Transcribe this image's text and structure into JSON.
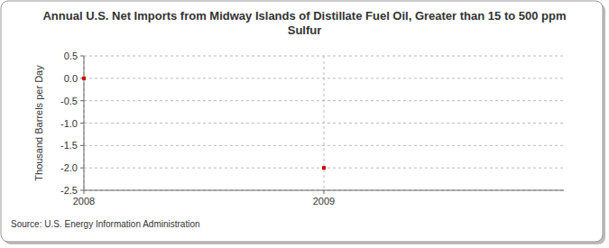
{
  "chart_data": {
    "type": "scatter",
    "title": "Annual U.S. Net Imports from Midway Islands of Distillate Fuel Oil, Greater than 15 to 500 ppm Sulfur",
    "y_label": "Thousand Barrels per Day",
    "source": "Source: U.S. Energy Information Administration",
    "x": [
      2008,
      2009
    ],
    "values": [
      0,
      -2
    ],
    "color": "#cc0000",
    "marker": "square",
    "xlim": [
      2008,
      2010
    ],
    "xticks": [
      2008,
      2009
    ],
    "ylim": [
      -2.5,
      0.5
    ],
    "yticks": [
      {
        "value": -2.5,
        "label": "-2.5"
      },
      {
        "value": -2,
        "label": "-2.0"
      },
      {
        "value": -1.5,
        "label": "-1.5"
      },
      {
        "value": -1,
        "label": "-1.0"
      },
      {
        "value": -0.5,
        "label": "-0.5"
      },
      {
        "value": 0,
        "label": "0.0"
      },
      0.5
    ],
    "grid": true
  }
}
